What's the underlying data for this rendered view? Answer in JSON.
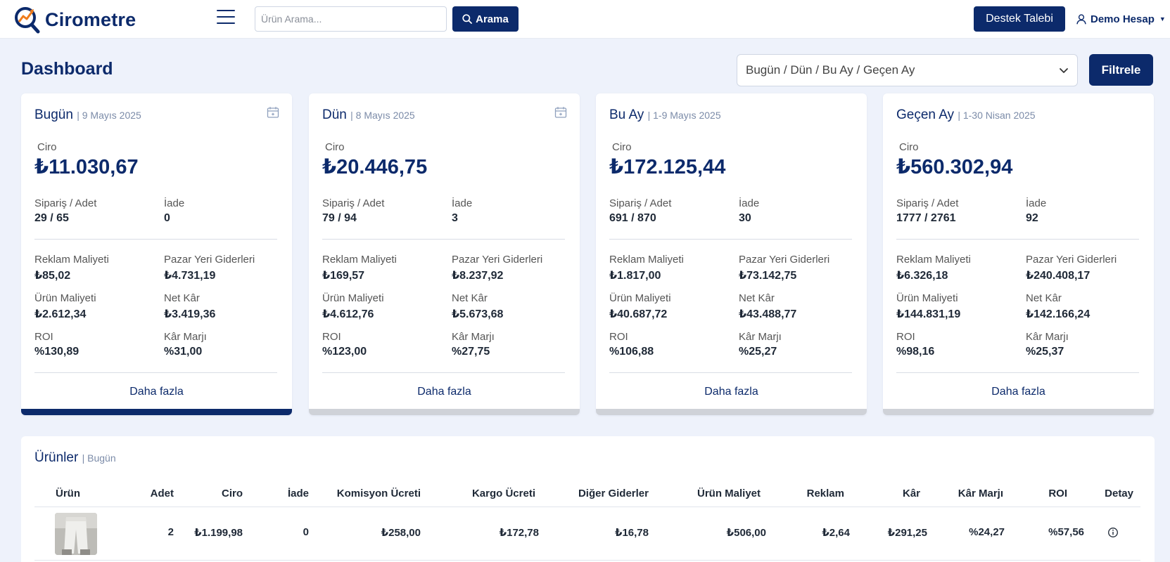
{
  "brand": {
    "name": "Cirometre",
    "accent": "#0c2a6b",
    "logo_orange": "#f07c1b"
  },
  "header": {
    "search_placeholder": "Ürün Arama...",
    "search_label": "Arama",
    "support_label": "Destek Talebi",
    "account_label": "Demo Hesap"
  },
  "page": {
    "title": "Dashboard",
    "period_select": "Bugün / Dün / Bu Ay / Geçen Ay",
    "filter_label": "Filtrele"
  },
  "labels": {
    "ciro": "Ciro",
    "siparis": "Sipariş / Adet",
    "iade": "İade",
    "reklam": "Reklam Maliyeti",
    "pazar": "Pazar Yeri Giderleri",
    "urun": "Ürün Maliyeti",
    "net": "Net Kâr",
    "roi": "ROI",
    "marj": "Kâr Marjı",
    "more": "Daha fazla"
  },
  "cards": [
    {
      "title": "Bugün",
      "date": "| 9 Mayıs 2025",
      "ciro": "₺11.030,67",
      "siparis": "29 / 65",
      "iade": "0",
      "reklam": "₺85,02",
      "pazar": "₺4.731,19",
      "urun": "₺2.612,34",
      "net": "₺3.419,36",
      "roi": "%130,89",
      "marj": "%31,00"
    },
    {
      "title": "Dün",
      "date": "| 8 Mayıs 2025",
      "ciro": "₺20.446,75",
      "siparis": "79 / 94",
      "iade": "3",
      "reklam": "₺169,57",
      "pazar": "₺8.237,92",
      "urun": "₺4.612,76",
      "net": "₺5.673,68",
      "roi": "%123,00",
      "marj": "%27,75"
    },
    {
      "title": "Bu Ay",
      "date": "| 1-9 Mayıs 2025",
      "ciro": "₺172.125,44",
      "siparis": "691 / 870",
      "iade": "30",
      "reklam": "₺1.817,00",
      "pazar": "₺73.142,75",
      "urun": "₺40.687,72",
      "net": "₺43.488,77",
      "roi": "%106,88",
      "marj": "%25,27"
    },
    {
      "title": "Geçen Ay",
      "date": "| 1-30 Nisan 2025",
      "ciro": "₺560.302,94",
      "siparis": "1777 / 2761",
      "iade": "92",
      "reklam": "₺6.326,18",
      "pazar": "₺240.408,17",
      "urun": "₺144.831,19",
      "net": "₺142.166,24",
      "roi": "%98,16",
      "marj": "%25,37"
    }
  ],
  "products": {
    "title": "Ürünler",
    "subtitle": "| Bugün",
    "columns": [
      "Ürün",
      "Adet",
      "Ciro",
      "İade",
      "Komisyon Ücreti",
      "Kargo Ücreti",
      "Diğer Giderler",
      "Ürün Maliyet",
      "Reklam",
      "Kâr",
      "Kâr Marjı",
      "ROI",
      "Detay"
    ],
    "rows": [
      {
        "adet": "2",
        "ciro": "₺1.199,98",
        "iade": "0",
        "komisyon": "₺258,00",
        "kargo": "₺172,78",
        "diger": "₺16,78",
        "maliyet": "₺506,00",
        "reklam": "₺2,64",
        "kar": "₺291,25",
        "marj": "%24,27",
        "roi": "%57,56"
      }
    ]
  }
}
